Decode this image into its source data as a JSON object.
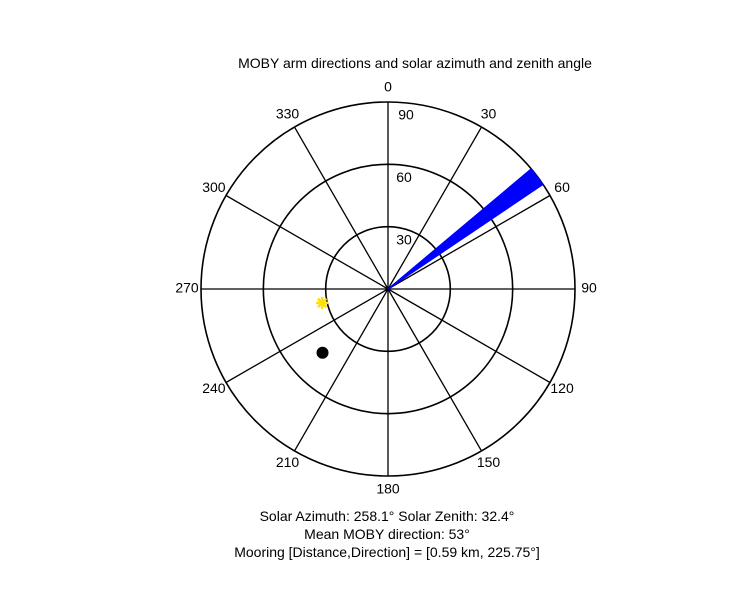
{
  "chart_data": {
    "type": "polar",
    "title": "MOBY arm directions and solar azimuth and zenith angle",
    "angle_zero": "top",
    "angle_direction": "clockwise",
    "angle_ticks": [
      "0",
      "30",
      "60",
      "90",
      "120",
      "150",
      "180",
      "210",
      "240",
      "270",
      "300",
      "330"
    ],
    "radial_ticks": [
      30,
      60,
      90
    ],
    "radial_tick_labels": [
      "30",
      "60",
      "90"
    ],
    "rlim": [
      0,
      90
    ],
    "grid": true,
    "moby_arm_directions": {
      "color": "#0000ff",
      "length": 90,
      "directions_deg_min": 50,
      "directions_deg_max": 56,
      "directions_deg": [
        50,
        50.5,
        51,
        51.5,
        52,
        52.5,
        53,
        53.5,
        54,
        54.5,
        55,
        55.5,
        56
      ]
    },
    "sun": {
      "azimuth": 258.1,
      "zenith": 32.4,
      "color": "#ffe000",
      "marker": "asterisk"
    },
    "mooring": {
      "direction": 225.75,
      "zenith": 44,
      "color": "#000000",
      "marker": "dot"
    }
  },
  "info": {
    "solar_line": "Solar Azimuth: 258.1°   Solar Zenith: 32.4°",
    "moby_line": "Mean MOBY direction: 53°",
    "mooring_line": "Mooring [Distance,Direction] = [0.59 km, 225.75°]"
  }
}
